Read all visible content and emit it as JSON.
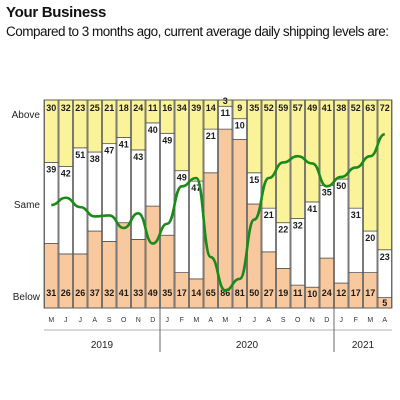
{
  "header": {
    "title": "Your Business",
    "subtitle": "Compared to 3 months ago, current average daily shipping levels are:"
  },
  "chart_data": {
    "type": "bar",
    "stacked": true,
    "title": "Your Business",
    "subtitle": "Compared to 3 months ago, current average daily shipping levels are:",
    "row_labels": [
      "Above",
      "Same",
      "Below"
    ],
    "categories": [
      "M",
      "J",
      "J",
      "A",
      "S",
      "O",
      "N",
      "D",
      "J",
      "F",
      "M",
      "A",
      "M",
      "J",
      "J",
      "A",
      "S",
      "O",
      "N",
      "D",
      "J",
      "F",
      "M",
      "A"
    ],
    "year_labels": [
      {
        "label": "2019",
        "start": 0,
        "end": 7
      },
      {
        "label": "2020",
        "start": 8,
        "end": 19
      },
      {
        "label": "2021",
        "start": 20,
        "end": 23
      }
    ],
    "series": [
      {
        "name": "Below",
        "color": "#f8c89e",
        "values": [
          31,
          26,
          26,
          37,
          32,
          41,
          33,
          49,
          35,
          17,
          14,
          65,
          86,
          81,
          50,
          27,
          19,
          11,
          10,
          24,
          12,
          17,
          17,
          5
        ]
      },
      {
        "name": "Same",
        "color": "#ffffff",
        "values": [
          39,
          42,
          51,
          38,
          47,
          41,
          43,
          40,
          49,
          49,
          47,
          21,
          11,
          10,
          15,
          21,
          22,
          32,
          41,
          35,
          50,
          31,
          20,
          23
        ]
      },
      {
        "name": "Above",
        "color": "#fbf39a",
        "values": [
          30,
          32,
          23,
          25,
          21,
          18,
          24,
          11,
          16,
          34,
          39,
          14,
          3,
          9,
          35,
          52,
          59,
          57,
          49,
          41,
          38,
          52,
          63,
          72
        ]
      }
    ],
    "net_line": {
      "color": "#1a8a1a",
      "values": [
        -1,
        6,
        -3,
        -12,
        -11,
        -23,
        -9,
        -38,
        -19,
        17,
        25,
        -51,
        -83,
        -72,
        -15,
        25,
        40,
        46,
        39,
        17,
        26,
        35,
        46,
        67
      ]
    },
    "ylim": [
      0,
      100
    ],
    "label_color": "#1a1a1a",
    "grid": false,
    "legend": "none"
  }
}
